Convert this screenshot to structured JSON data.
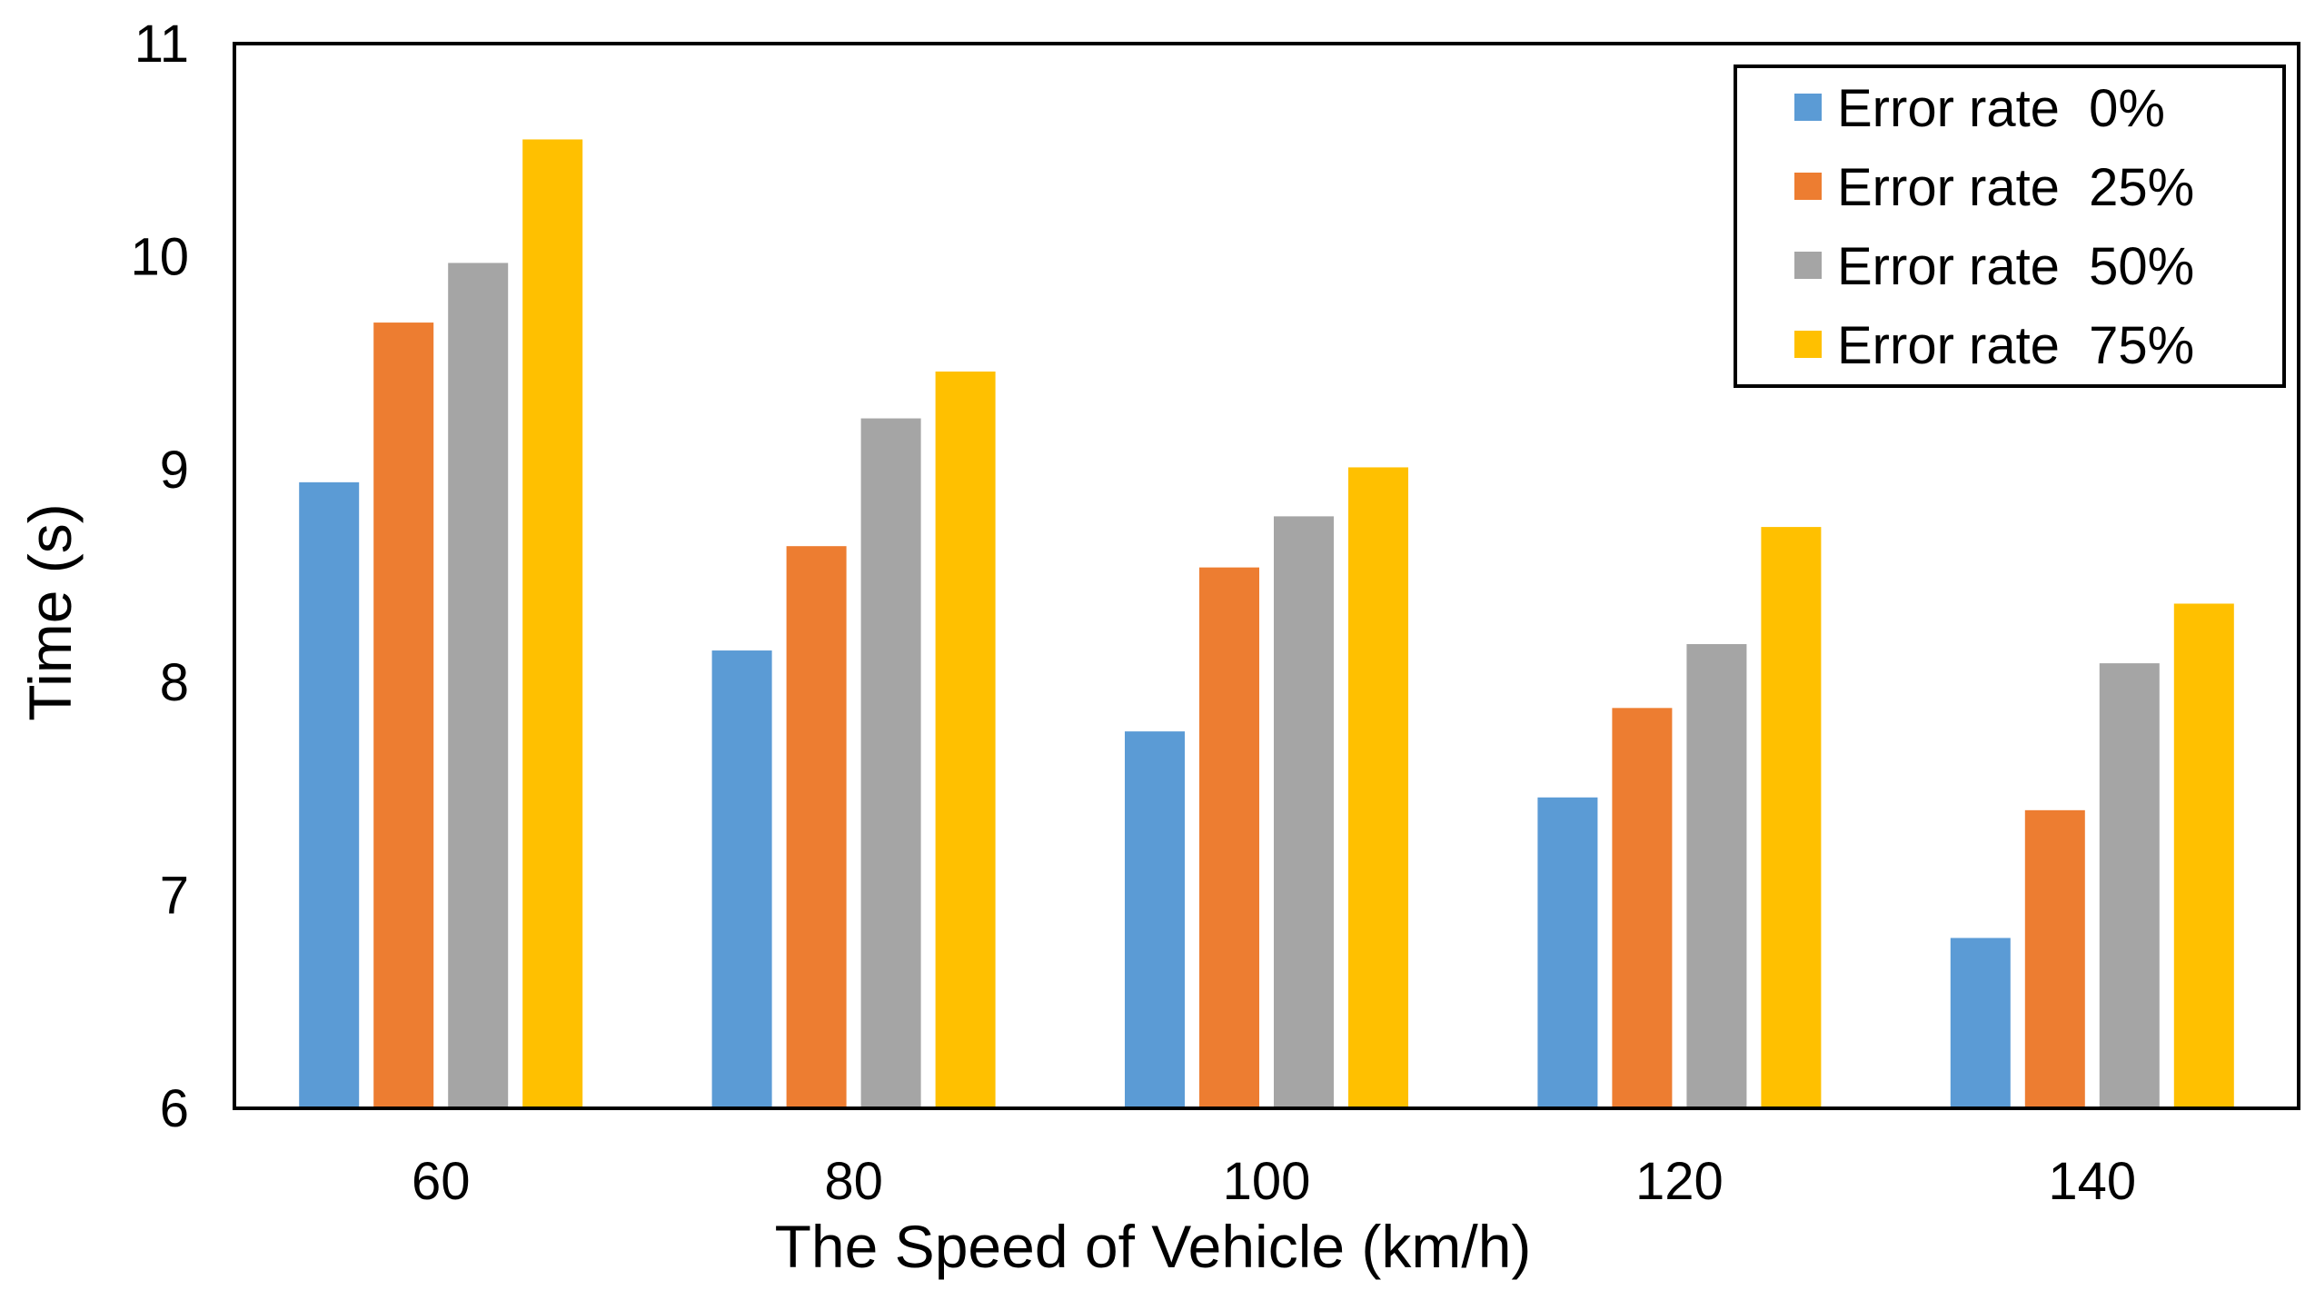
{
  "chart_data": {
    "type": "bar",
    "title": "",
    "xlabel": "The Speed of Vehicle (km/h)",
    "ylabel": "Time (s)",
    "ylim": [
      6,
      11
    ],
    "yticks": [
      "6",
      "7",
      "8",
      "9",
      "10",
      "11"
    ],
    "grid": false,
    "legend_position": "top-right",
    "categories": [
      "60",
      "80",
      "100",
      "120",
      "140"
    ],
    "series": [
      {
        "name": "Error rate  0%",
        "color": "#5b9bd5",
        "values": [
          8.94,
          8.15,
          7.77,
          7.46,
          6.8
        ]
      },
      {
        "name": "Error rate  25%",
        "color": "#ed7d31",
        "values": [
          9.69,
          8.64,
          8.54,
          7.88,
          7.4
        ]
      },
      {
        "name": "Error rate  50%",
        "color": "#a5a5a5",
        "values": [
          9.97,
          9.24,
          8.78,
          8.18,
          8.09
        ]
      },
      {
        "name": "Error rate  75%",
        "color": "#ffc000",
        "values": [
          10.55,
          9.46,
          9.01,
          8.73,
          8.37
        ]
      }
    ]
  }
}
